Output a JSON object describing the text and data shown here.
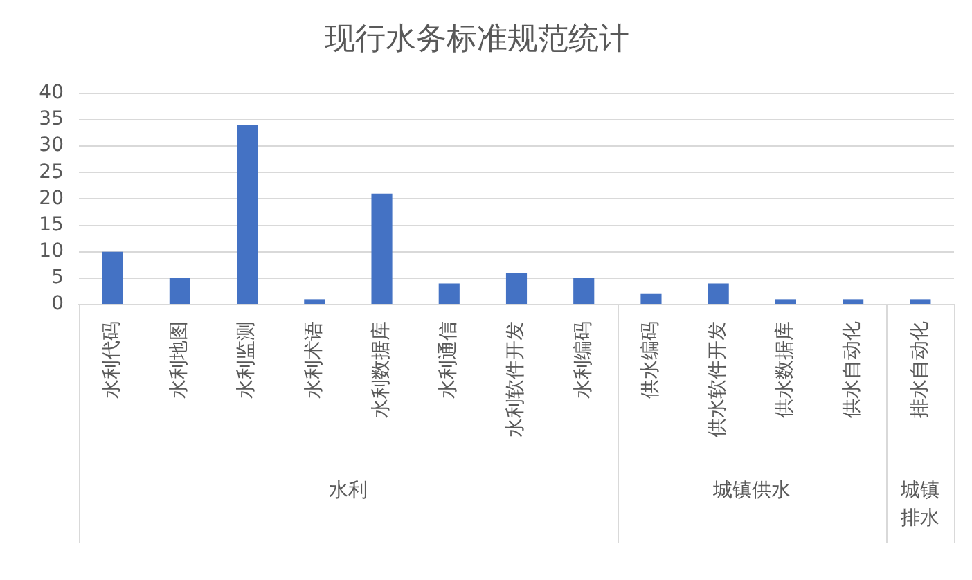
{
  "chart_data": {
    "type": "bar",
    "title": "现行水务标准规范统计",
    "categories": [
      "水利代码",
      "水利地图",
      "水利监测",
      "水利术语",
      "水利数据库",
      "水利通信",
      "水利软件开发",
      "水利编码",
      "供水编码",
      "供水软件开发",
      "供水数据库",
      "供水自动化",
      "排水自动化"
    ],
    "values": [
      10,
      5,
      34,
      1,
      21,
      4,
      6,
      5,
      2,
      4,
      1,
      1,
      1
    ],
    "color": "#4472c4",
    "ylim": [
      0,
      40
    ],
    "yticks": [
      0,
      5,
      10,
      15,
      20,
      25,
      30,
      35,
      40
    ],
    "grid": "y",
    "annotations": [
      "水利",
      "城镇供水",
      "城镇排水"
    ]
  }
}
